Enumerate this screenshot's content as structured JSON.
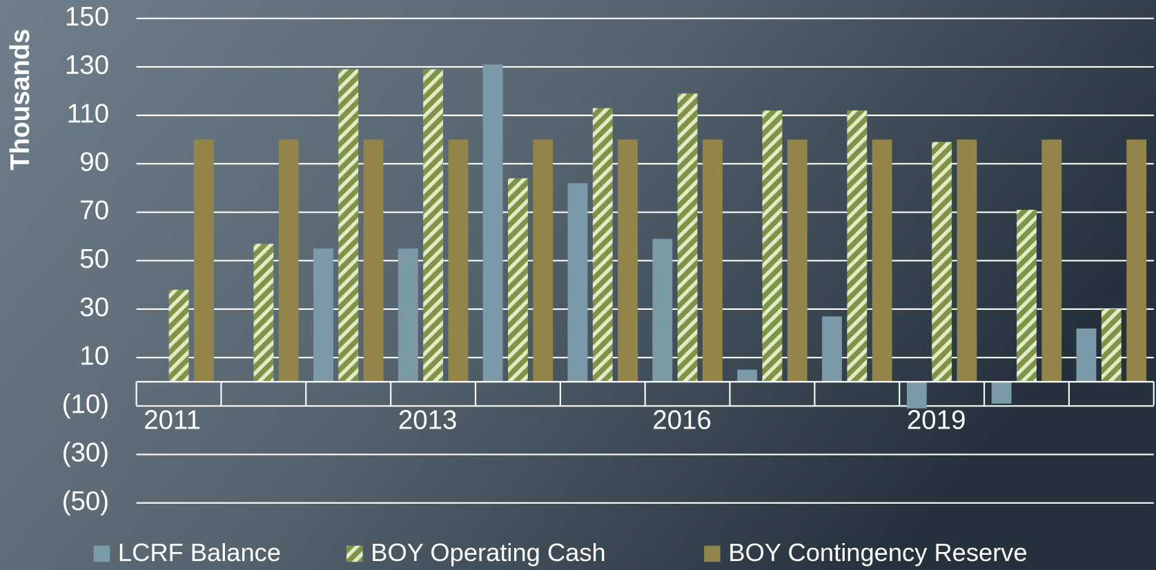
{
  "chart_data": {
    "type": "bar",
    "y_label": "Thousands",
    "categories": [
      "2011",
      null,
      null,
      "2013",
      null,
      null,
      "2016",
      null,
      null,
      "2019",
      null,
      null
    ],
    "series": [
      {
        "name": "LCRF Balance",
        "color": "#7a9aa8",
        "values": [
          0,
          0,
          55,
          55,
          131,
          82,
          59,
          5,
          27,
          -11,
          -9,
          22
        ]
      },
      {
        "name": "BOY Operating Cash",
        "color": "#7f9448",
        "hatch": true,
        "values": [
          38,
          57,
          129,
          129,
          84,
          113,
          119,
          112,
          112,
          99,
          71,
          30
        ]
      },
      {
        "name": "BOY Contingency Reserve",
        "color": "#938449",
        "values": [
          100,
          100,
          100,
          100,
          100,
          100,
          100,
          100,
          100,
          100,
          100,
          100
        ]
      }
    ],
    "ylim": [
      -50,
      150
    ],
    "yticks": [
      {
        "value": -50,
        "label": "(50)"
      },
      {
        "value": -30,
        "label": "(30)"
      },
      {
        "value": -10,
        "label": "(10)"
      },
      10,
      30,
      50,
      70,
      90,
      110,
      130,
      150
    ],
    "grid": true,
    "legend": "bottom"
  }
}
